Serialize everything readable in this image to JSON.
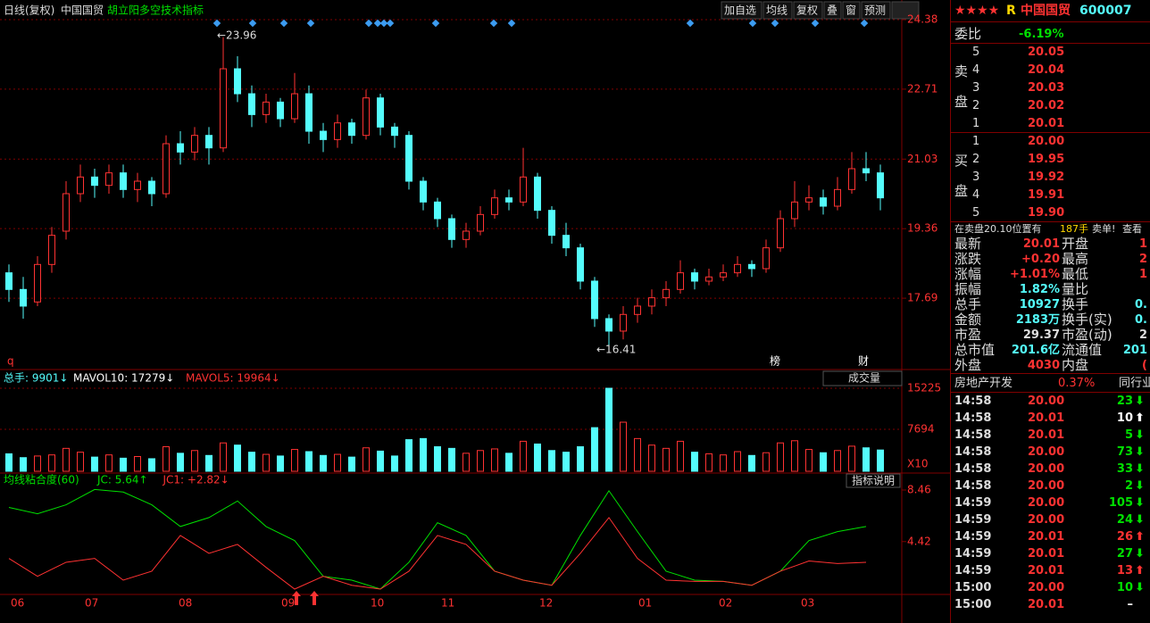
{
  "header": {
    "period": "日线(复权)",
    "stock": "中国国贸",
    "indicator": "胡立阳多空技术指标"
  },
  "toolbar": [
    "加自选",
    "均线",
    "复权",
    "叠",
    "窗",
    "预测"
  ],
  "kline": {
    "ylim": [
      16.02,
      24.53
    ],
    "yticks": [
      24.38,
      22.71,
      21.03,
      19.36,
      17.69
    ],
    "ohlc": [
      [
        18.3,
        18.5,
        17.6,
        17.9
      ],
      [
        17.9,
        18.2,
        17.2,
        17.5
      ],
      [
        17.6,
        18.7,
        17.5,
        18.5
      ],
      [
        18.5,
        19.4,
        18.3,
        19.2
      ],
      [
        19.3,
        20.5,
        19.1,
        20.2
      ],
      [
        20.2,
        20.9,
        20.0,
        20.6
      ],
      [
        20.6,
        20.8,
        20.1,
        20.4
      ],
      [
        20.4,
        20.9,
        20.2,
        20.7
      ],
      [
        20.7,
        20.9,
        20.1,
        20.3
      ],
      [
        20.3,
        20.7,
        20.0,
        20.5
      ],
      [
        20.5,
        20.6,
        19.9,
        20.2
      ],
      [
        20.2,
        21.6,
        20.1,
        21.4
      ],
      [
        21.4,
        21.7,
        20.9,
        21.2
      ],
      [
        21.2,
        21.8,
        21.0,
        21.6
      ],
      [
        21.6,
        21.8,
        20.9,
        21.3
      ],
      [
        21.3,
        23.96,
        21.2,
        23.2
      ],
      [
        23.2,
        23.5,
        22.4,
        22.6
      ],
      [
        22.6,
        22.8,
        21.8,
        22.1
      ],
      [
        22.1,
        22.6,
        21.9,
        22.4
      ],
      [
        22.4,
        22.5,
        21.8,
        22.0
      ],
      [
        22.0,
        23.1,
        21.9,
        22.6
      ],
      [
        22.6,
        22.8,
        21.4,
        21.7
      ],
      [
        21.7,
        21.9,
        21.2,
        21.5
      ],
      [
        21.5,
        22.1,
        21.3,
        21.9
      ],
      [
        21.9,
        22.0,
        21.4,
        21.6
      ],
      [
        21.6,
        22.7,
        21.5,
        22.5
      ],
      [
        22.5,
        22.6,
        21.6,
        21.8
      ],
      [
        21.8,
        21.9,
        21.3,
        21.6
      ],
      [
        21.6,
        21.7,
        20.3,
        20.5
      ],
      [
        20.5,
        20.6,
        19.8,
        20.0
      ],
      [
        20.0,
        20.1,
        19.4,
        19.6
      ],
      [
        19.6,
        19.7,
        18.9,
        19.1
      ],
      [
        19.1,
        19.5,
        18.9,
        19.3
      ],
      [
        19.3,
        19.9,
        19.2,
        19.7
      ],
      [
        19.7,
        20.3,
        19.6,
        20.1
      ],
      [
        20.1,
        20.3,
        19.8,
        20.0
      ],
      [
        20.0,
        21.3,
        19.9,
        20.6
      ],
      [
        20.6,
        20.7,
        19.6,
        19.8
      ],
      [
        19.8,
        19.9,
        19.0,
        19.2
      ],
      [
        19.2,
        19.5,
        18.7,
        18.9
      ],
      [
        18.9,
        19.0,
        17.9,
        18.1
      ],
      [
        18.1,
        18.2,
        17.0,
        17.2
      ],
      [
        17.2,
        17.3,
        16.41,
        16.9
      ],
      [
        16.9,
        17.5,
        16.7,
        17.3
      ],
      [
        17.3,
        17.7,
        17.1,
        17.5
      ],
      [
        17.5,
        17.9,
        17.3,
        17.7
      ],
      [
        17.7,
        18.1,
        17.5,
        17.9
      ],
      [
        17.9,
        18.6,
        17.8,
        18.3
      ],
      [
        18.3,
        18.4,
        17.9,
        18.1
      ],
      [
        18.1,
        18.4,
        18.0,
        18.2
      ],
      [
        18.2,
        18.5,
        18.1,
        18.3
      ],
      [
        18.3,
        18.7,
        18.2,
        18.5
      ],
      [
        18.5,
        18.6,
        18.2,
        18.4
      ],
      [
        18.4,
        19.1,
        18.3,
        18.9
      ],
      [
        18.9,
        19.8,
        18.8,
        19.6
      ],
      [
        19.6,
        20.5,
        19.4,
        20.0
      ],
      [
        20.0,
        20.4,
        19.8,
        20.1
      ],
      [
        20.1,
        20.3,
        19.7,
        19.9
      ],
      [
        19.9,
        20.6,
        19.8,
        20.3
      ],
      [
        20.3,
        21.2,
        20.2,
        20.8
      ],
      [
        20.8,
        21.2,
        20.5,
        20.7
      ],
      [
        20.7,
        20.9,
        19.8,
        20.1
      ]
    ],
    "high_label": "23.96",
    "low_label": "16.41",
    "markers": [
      "榜",
      "财"
    ],
    "corner": "q"
  },
  "volume": {
    "legend": [
      "总手: 9901↓",
      "MAVOL10: 17279↓",
      "MAVOL5: 19964↓"
    ],
    "selector": "成交量",
    "unit": "X10",
    "ylim": [
      0,
      16044
    ],
    "yticks": [
      15225,
      7694
    ],
    "values": [
      3200,
      2500,
      2800,
      3000,
      4200,
      3500,
      2600,
      3000,
      2400,
      2700,
      2300,
      4500,
      3300,
      3800,
      2900,
      5200,
      4800,
      3500,
      3100,
      2800,
      4000,
      3600,
      2900,
      3100,
      2600,
      4300,
      3700,
      2800,
      5800,
      6000,
      4500,
      4200,
      3300,
      3800,
      4100,
      3300,
      5500,
      5000,
      3800,
      3500,
      4500,
      8000,
      15225,
      9000,
      6000,
      4800,
      4200,
      5500,
      3500,
      3200,
      3000,
      3600,
      2900,
      3400,
      5200,
      5600,
      4000,
      3400,
      3800,
      4600,
      4300,
      3900
    ]
  },
  "indicator": {
    "legend": [
      "均线粘合度(60)",
      "JC: 5.64↑",
      "JC1: +2.82↓"
    ],
    "button": "指标说明",
    "ylim": [
      0,
      8.74
    ],
    "yticks": [
      8.46,
      4.42
    ],
    "series": [
      {
        "color": "#00e000",
        "values": [
          7.1,
          6.6,
          7.3,
          8.5,
          8.3,
          7.3,
          5.6,
          6.3,
          7.6,
          5.6,
          4.5,
          1.7,
          1.4,
          0.7,
          2.8,
          5.9,
          4.9,
          2.1,
          1.4,
          1.0,
          4.9,
          8.4,
          5.2,
          2.1,
          1.4,
          1.3,
          1.0,
          2.1,
          4.5,
          5.2,
          5.6
        ]
      },
      {
        "color": "#ff3232",
        "values": [
          3.1,
          1.7,
          2.8,
          3.1,
          1.4,
          2.1,
          4.9,
          3.5,
          4.2,
          2.4,
          0.7,
          1.7,
          1.0,
          0.7,
          2.1,
          4.9,
          4.2,
          2.1,
          1.4,
          1.0,
          3.5,
          6.3,
          3.1,
          1.4,
          1.3,
          1.3,
          1.0,
          2.1,
          2.9,
          2.7,
          2.8
        ]
      }
    ]
  },
  "xaxis": [
    "06",
    "07",
    "08",
    "09",
    "10",
    "11",
    "12",
    "01",
    "02",
    "03"
  ],
  "quote": {
    "stars": "★★★★",
    "flag": "R",
    "name": "中国国贸",
    "code": "600007",
    "wb_label": "委比",
    "wb": "-6.19%",
    "sell_label": [
      "卖",
      "盘"
    ],
    "sell": [
      [
        "5",
        "20.05"
      ],
      [
        "4",
        "20.04"
      ],
      [
        "3",
        "20.03"
      ],
      [
        "2",
        "20.02"
      ],
      [
        "1",
        "20.01"
      ]
    ],
    "buy_label": [
      "买",
      "盘"
    ],
    "buy": [
      [
        "1",
        "20.00"
      ],
      [
        "2",
        "19.95"
      ],
      [
        "3",
        "19.92"
      ],
      [
        "4",
        "19.91"
      ],
      [
        "5",
        "19.90"
      ]
    ],
    "notice": [
      "在卖盘20.10位置有",
      "187手",
      "卖单!",
      "查看"
    ],
    "stats": [
      [
        "最新",
        "20.01",
        "开盘",
        "1"
      ],
      [
        "涨跌",
        "+0.20",
        "最高",
        "2"
      ],
      [
        "涨幅",
        "+1.01%",
        "最低",
        "1"
      ],
      [
        "振幅",
        "1.82%",
        "量比"
      ],
      [
        "总手",
        "10927",
        "换手",
        "0."
      ],
      [
        "金额",
        "2183万",
        "换手(实)",
        "0."
      ],
      [
        "市盈",
        "29.37",
        "市盈(动)",
        "2"
      ],
      [
        "总市值",
        "201.6亿",
        "流通值",
        "201"
      ],
      [
        "外盘",
        "4030",
        "内盘",
        "("
      ]
    ],
    "stat_colors": [
      "#ff3232",
      "#ff3232",
      "#ff3232",
      "#54fcfc",
      "#54fcfc",
      "#54fcfc",
      "#dddddd",
      "#54fcfc",
      "#ff3232"
    ],
    "sector": [
      "房地产开发",
      "0.37%",
      "同行业比"
    ],
    "ticks": [
      [
        "14:58",
        "20.00",
        "23",
        "down"
      ],
      [
        "14:58",
        "20.01",
        "10",
        "even"
      ],
      [
        "14:58",
        "20.01",
        "5",
        "down"
      ],
      [
        "14:58",
        "20.00",
        "73",
        "down"
      ],
      [
        "14:58",
        "20.00",
        "33",
        "down"
      ],
      [
        "14:58",
        "20.00",
        "2",
        "down"
      ],
      [
        "14:59",
        "20.00",
        "105",
        "down"
      ],
      [
        "14:59",
        "20.00",
        "24",
        "down"
      ],
      [
        "14:59",
        "20.01",
        "26",
        "up"
      ],
      [
        "14:59",
        "20.01",
        "27",
        "down"
      ],
      [
        "14:59",
        "20.01",
        "13",
        "up"
      ],
      [
        "15:00",
        "20.00",
        "10",
        "down"
      ],
      [
        "15:00",
        "20.01",
        "–"
      ]
    ]
  }
}
